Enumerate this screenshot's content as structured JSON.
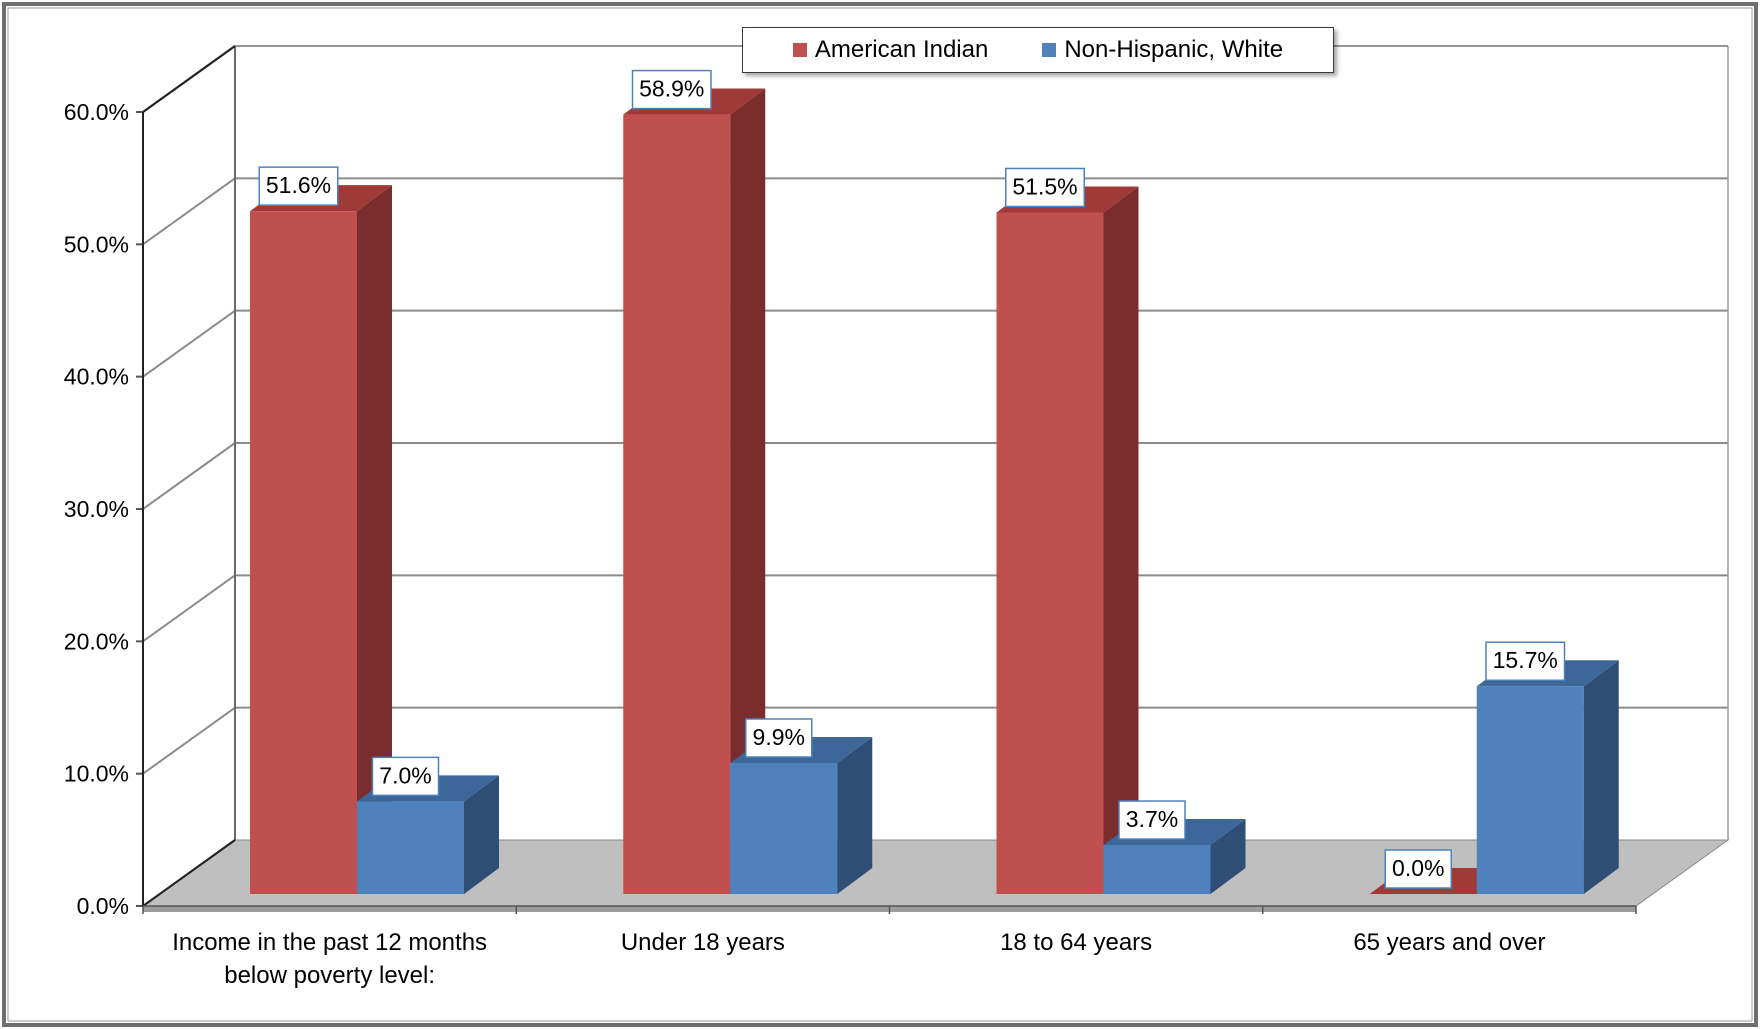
{
  "chart_data": {
    "type": "bar",
    "categories": [
      [
        "Income in the past 12 months",
        "below poverty level:"
      ],
      [
        "Under 18 years"
      ],
      [
        "18 to 64 years"
      ],
      [
        "65 years and over"
      ]
    ],
    "series": [
      {
        "name": "American Indian",
        "values": [
          51.6,
          58.9,
          51.5,
          0.0
        ],
        "labels": [
          "51.6%",
          "58.9%",
          "51.5%",
          "0.0%"
        ],
        "color": "#C0504D",
        "side_color": "#7B2C2C",
        "top_color": "#A03A38"
      },
      {
        "name": "Non-Hispanic, White",
        "values": [
          7.0,
          9.9,
          3.7,
          15.7
        ],
        "labels": [
          "7.0%",
          "9.9%",
          "3.7%",
          "15.7%"
        ],
        "color": "#4F81BD",
        "side_color": "#2E4E75",
        "top_color": "#3D6699"
      }
    ],
    "yticks": [
      "0.0%",
      "10.0%",
      "20.0%",
      "30.0%",
      "40.0%",
      "50.0%",
      "60.0%"
    ],
    "ylim": [
      0,
      60
    ],
    "grid": true,
    "legend_position": "top-center",
    "floor_color": "#BFBFBF"
  }
}
